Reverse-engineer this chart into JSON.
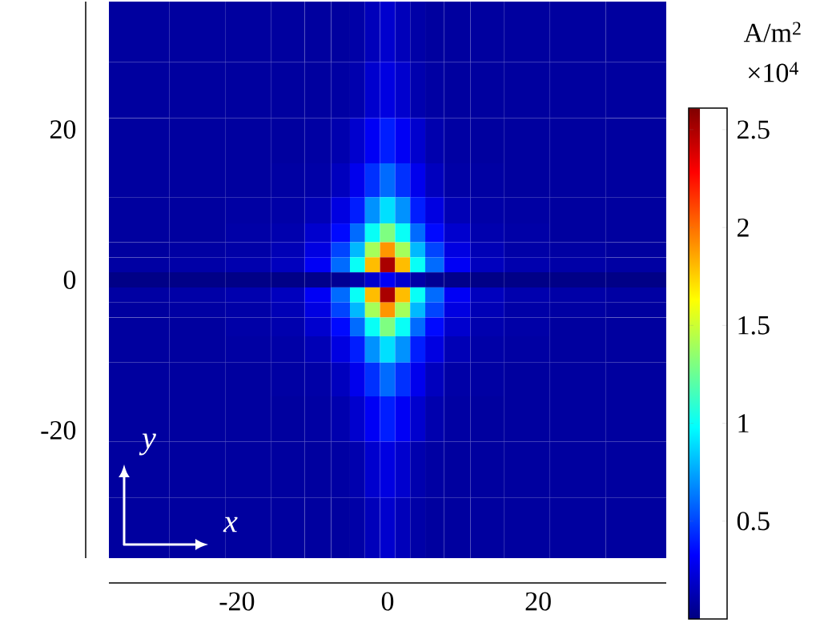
{
  "chart_data": {
    "type": "heatmap",
    "x": [
      -33,
      -25,
      -18,
      -13,
      -9,
      -6,
      -4,
      -2,
      0,
      2,
      4,
      6,
      9,
      13,
      18,
      25,
      33
    ],
    "y": [
      33,
      25,
      18,
      13,
      9,
      6,
      4,
      2,
      0,
      -2,
      -4,
      -6,
      -9,
      -13,
      -18,
      -25,
      -33
    ],
    "cells": [
      [
        0.08,
        0.08,
        0.08,
        0.08,
        0.08,
        0.08,
        0.1,
        0.15,
        0.2,
        0.15,
        0.1,
        0.08,
        0.08,
        0.08,
        0.08,
        0.08,
        0.08
      ],
      [
        0.08,
        0.08,
        0.08,
        0.08,
        0.08,
        0.09,
        0.12,
        0.2,
        0.25,
        0.2,
        0.12,
        0.09,
        0.08,
        0.08,
        0.08,
        0.08,
        0.08
      ],
      [
        0.08,
        0.08,
        0.08,
        0.08,
        0.09,
        0.12,
        0.2,
        0.3,
        0.4,
        0.3,
        0.2,
        0.12,
        0.09,
        0.08,
        0.08,
        0.08,
        0.08
      ],
      [
        0.08,
        0.08,
        0.08,
        0.09,
        0.1,
        0.16,
        0.28,
        0.45,
        0.6,
        0.45,
        0.28,
        0.16,
        0.1,
        0.09,
        0.08,
        0.08,
        0.08
      ],
      [
        0.08,
        0.08,
        0.09,
        0.1,
        0.14,
        0.25,
        0.4,
        0.7,
        0.9,
        0.7,
        0.4,
        0.25,
        0.14,
        0.1,
        0.09,
        0.08,
        0.08
      ],
      [
        0.08,
        0.08,
        0.1,
        0.12,
        0.2,
        0.35,
        0.6,
        1.0,
        1.3,
        1.0,
        0.6,
        0.35,
        0.2,
        0.12,
        0.1,
        0.08,
        0.08
      ],
      [
        0.08,
        0.09,
        0.1,
        0.14,
        0.25,
        0.5,
        0.8,
        1.4,
        1.9,
        1.4,
        0.8,
        0.5,
        0.25,
        0.14,
        0.1,
        0.09,
        0.08
      ],
      [
        0.09,
        0.1,
        0.12,
        0.16,
        0.3,
        0.6,
        1.0,
        1.8,
        2.5,
        1.8,
        1.0,
        0.6,
        0.3,
        0.16,
        0.12,
        0.1,
        0.09
      ],
      [
        0.02,
        0.02,
        0.02,
        0.02,
        0.03,
        0.05,
        0.1,
        0.2,
        0.3,
        0.2,
        0.1,
        0.05,
        0.03,
        0.02,
        0.02,
        0.02,
        0.02
      ],
      [
        0.09,
        0.1,
        0.12,
        0.16,
        0.3,
        0.6,
        1.0,
        1.8,
        2.5,
        1.8,
        1.0,
        0.6,
        0.3,
        0.16,
        0.12,
        0.1,
        0.09
      ],
      [
        0.08,
        0.09,
        0.1,
        0.14,
        0.25,
        0.5,
        0.8,
        1.4,
        1.9,
        1.4,
        0.8,
        0.5,
        0.25,
        0.14,
        0.1,
        0.09,
        0.08
      ],
      [
        0.08,
        0.08,
        0.1,
        0.12,
        0.2,
        0.35,
        0.6,
        1.0,
        1.3,
        1.0,
        0.6,
        0.35,
        0.2,
        0.12,
        0.1,
        0.08,
        0.08
      ],
      [
        0.08,
        0.08,
        0.09,
        0.1,
        0.14,
        0.25,
        0.4,
        0.7,
        0.9,
        0.7,
        0.4,
        0.25,
        0.14,
        0.1,
        0.09,
        0.08,
        0.08
      ],
      [
        0.08,
        0.08,
        0.08,
        0.09,
        0.1,
        0.16,
        0.28,
        0.45,
        0.6,
        0.45,
        0.28,
        0.16,
        0.1,
        0.09,
        0.08,
        0.08,
        0.08
      ],
      [
        0.08,
        0.08,
        0.08,
        0.08,
        0.09,
        0.12,
        0.2,
        0.3,
        0.4,
        0.3,
        0.2,
        0.12,
        0.09,
        0.08,
        0.08,
        0.08,
        0.08
      ],
      [
        0.08,
        0.08,
        0.08,
        0.08,
        0.08,
        0.09,
        0.12,
        0.2,
        0.25,
        0.2,
        0.12,
        0.09,
        0.08,
        0.08,
        0.08,
        0.08,
        0.08
      ],
      [
        0.08,
        0.08,
        0.08,
        0.08,
        0.08,
        0.08,
        0.1,
        0.15,
        0.2,
        0.15,
        0.1,
        0.08,
        0.08,
        0.08,
        0.08,
        0.08,
        0.08
      ]
    ],
    "xlim": [
      -37,
      37
    ],
    "ylim": [
      -37,
      37
    ],
    "xticks": [
      -20,
      0,
      20
    ],
    "yticks": [
      -20,
      0,
      20
    ],
    "clim": [
      0,
      2.61
    ],
    "cticks": [
      0.5,
      1,
      1.5,
      2,
      2.5
    ],
    "clabel": "A/m$^{2}$",
    "annotations": [
      "×10$^{4}$",
      "y",
      "x"
    ]
  }
}
